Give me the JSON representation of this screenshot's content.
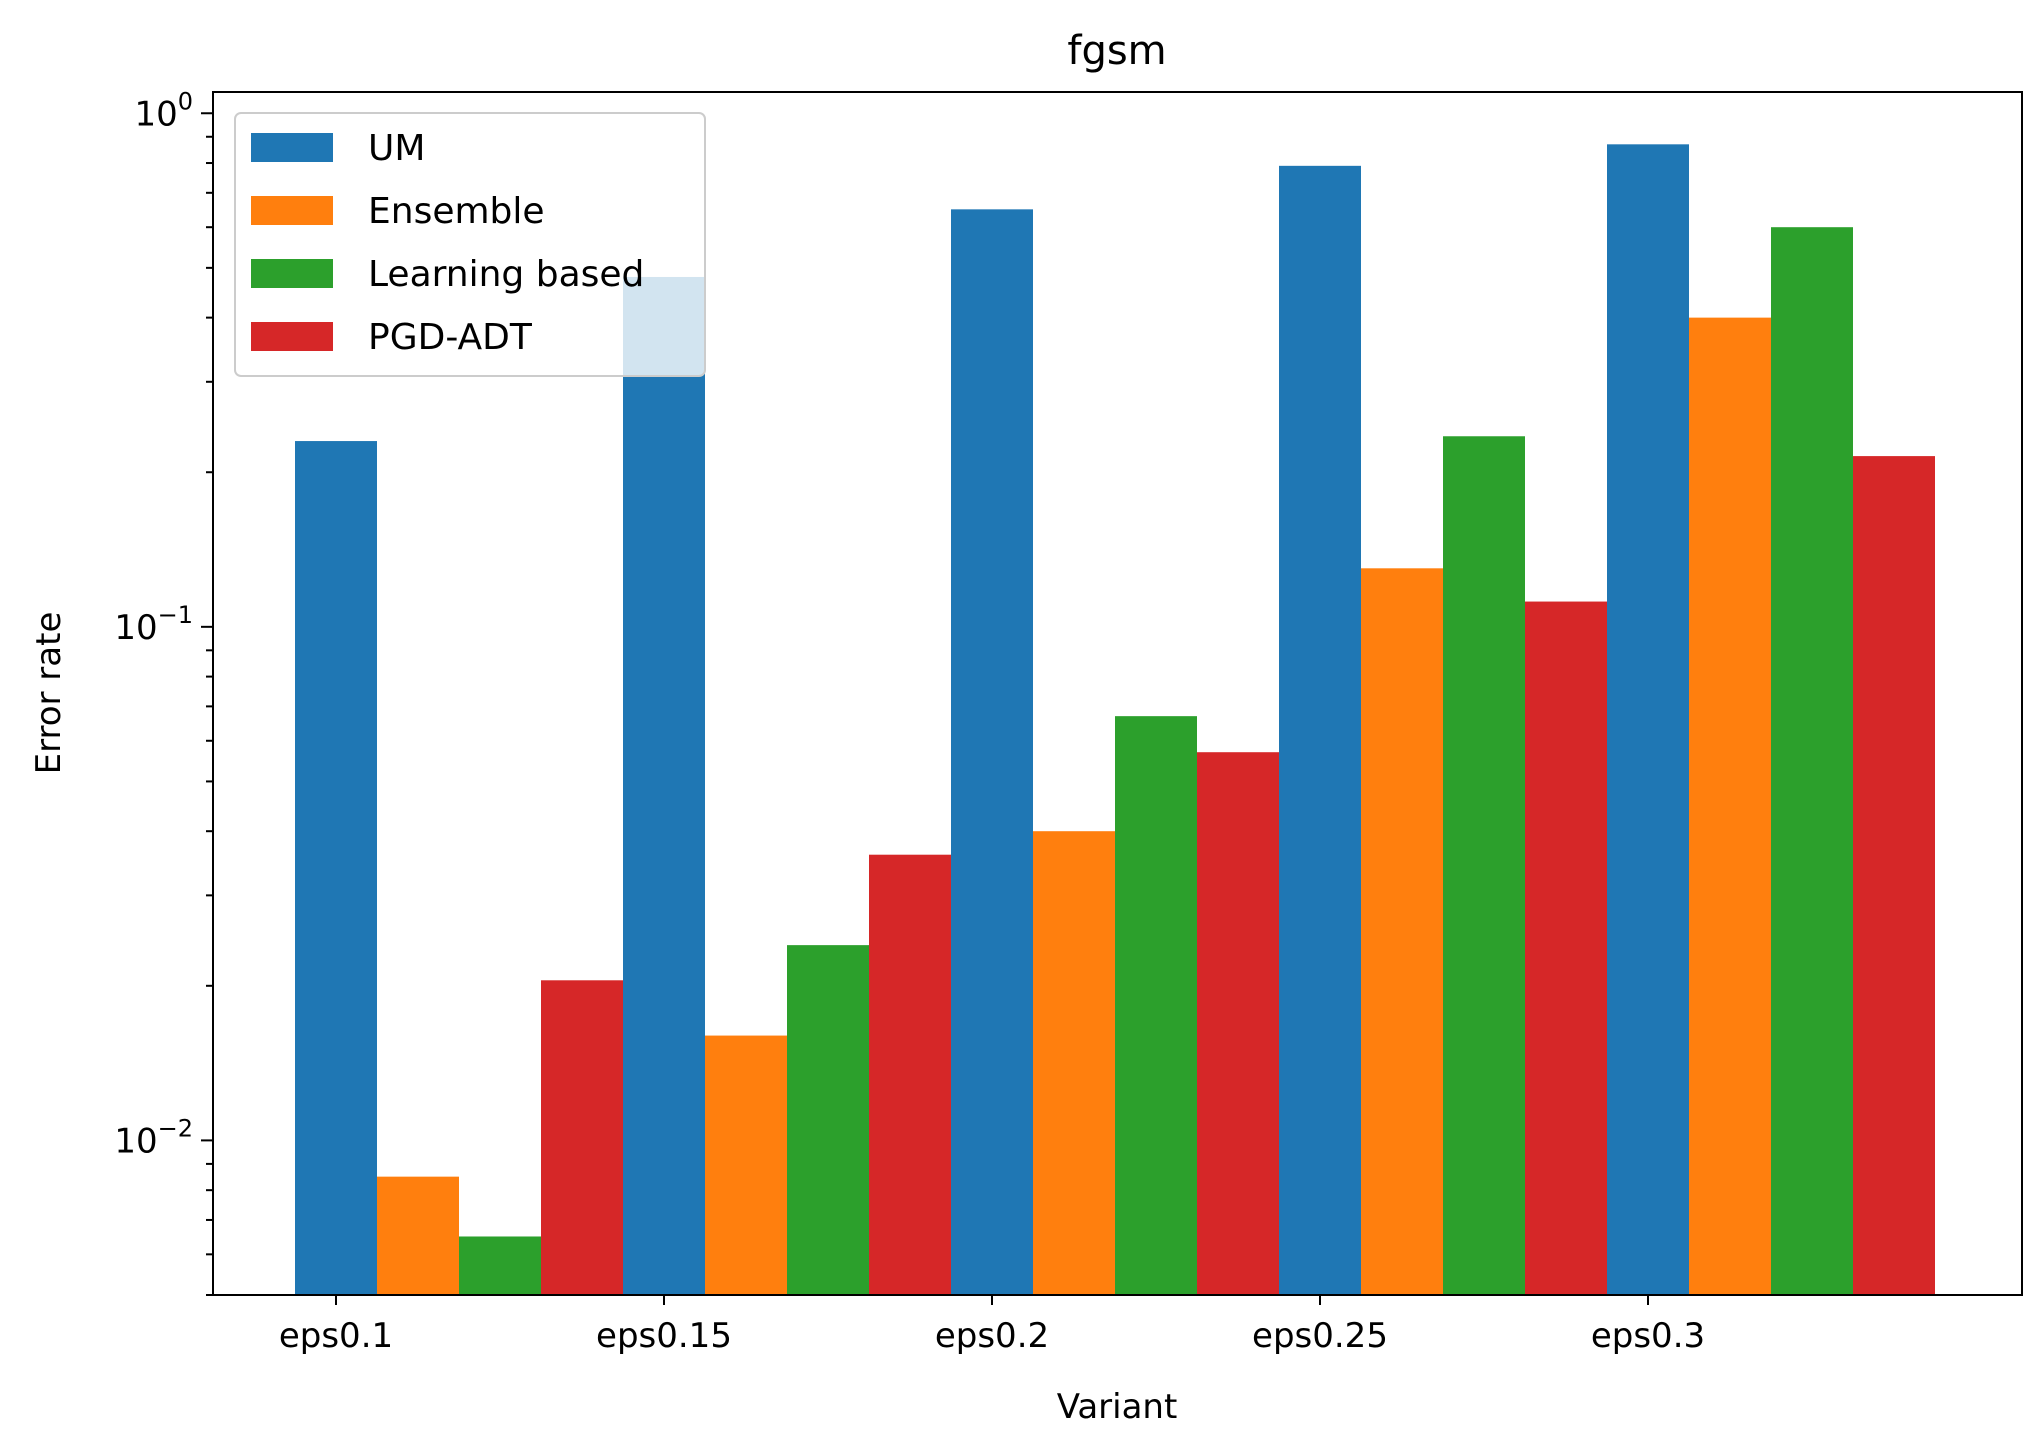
{
  "chart_data": {
    "type": "bar",
    "title": "fgsm",
    "xlabel": "Variant",
    "ylabel": "Error rate",
    "yscale": "log",
    "ylim": [
      0.005,
      1.1
    ],
    "grid": false,
    "legend_position": "top-left",
    "categories": [
      "eps0.1",
      "eps0.15",
      "eps0.2",
      "eps0.25",
      "eps0.3"
    ],
    "y_ticks": [
      {
        "base": "10",
        "exp": "0",
        "value": 1
      },
      {
        "base": "10",
        "exp": "−1",
        "value": 0.1
      },
      {
        "base": "10",
        "exp": "−2",
        "value": 0.01
      }
    ],
    "series": [
      {
        "name": "UM",
        "color": "#1f77b4",
        "values": [
          0.23,
          0.48,
          0.65,
          0.79,
          0.87
        ]
      },
      {
        "name": "Ensemble",
        "color": "#ff7f0e",
        "values": [
          0.0085,
          0.016,
          0.04,
          0.13,
          0.4
        ]
      },
      {
        "name": "Learning based",
        "color": "#2ca02c",
        "values": [
          0.0065,
          0.024,
          0.067,
          0.235,
          0.6
        ]
      },
      {
        "name": "PGD-ADT",
        "color": "#d62728",
        "values": [
          0.0205,
          0.036,
          0.057,
          0.112,
          0.215
        ]
      }
    ]
  }
}
